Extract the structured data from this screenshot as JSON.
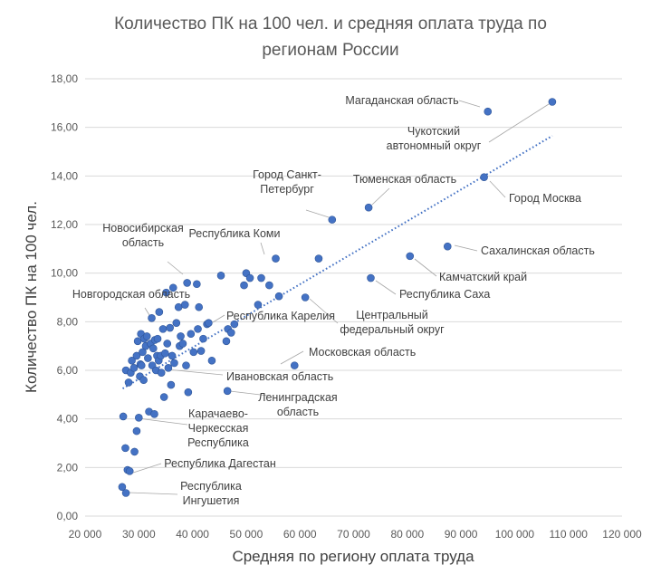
{
  "chart_data": {
    "type": "scatter",
    "title_lines": [
      "Количество ПК на 100 чел. и средняя оплата труда по",
      "регионам России"
    ],
    "xlabel": "Средняя по региону оплата труда",
    "ylabel": "Количество ПК на 100 чел.",
    "xlim": [
      20000,
      120000
    ],
    "ylim": [
      0,
      18
    ],
    "x_ticks": [
      20000,
      30000,
      40000,
      50000,
      60000,
      70000,
      80000,
      90000,
      100000,
      110000,
      120000
    ],
    "x_tick_labels": [
      "20 000",
      "30 000",
      "40 000",
      "50 000",
      "60 000",
      "70 000",
      "80 000",
      "90 000",
      "100 000",
      "110 000",
      "120 000"
    ],
    "y_ticks": [
      0,
      2,
      4,
      6,
      8,
      10,
      12,
      14,
      16,
      18
    ],
    "y_tick_labels": [
      "0,00",
      "2,00",
      "4,00",
      "6,00",
      "8,00",
      "10,00",
      "12,00",
      "14,00",
      "16,00",
      "18,00"
    ],
    "grid": "horizontal",
    "trendline": {
      "type": "linear",
      "x": [
        27000,
        107000
      ],
      "y": [
        5.25,
        15.65
      ]
    },
    "labeled_points": [
      {
        "lines": [
          "Магаданская область"
        ],
        "x": 95000,
        "y": 16.65
      },
      {
        "lines": [
          "Чукотский",
          "автономный округ"
        ],
        "x": 107000,
        "y": 17.05
      },
      {
        "lines": [
          "Город Санкт-",
          "Петербург"
        ],
        "x": 66000,
        "y": 12.2
      },
      {
        "lines": [
          "Тюменская область"
        ],
        "x": 72800,
        "y": 12.7
      },
      {
        "lines": [
          "Город Москва"
        ],
        "x": 94300,
        "y": 13.95
      },
      {
        "lines": [
          "Сахалинская область"
        ],
        "x": 87500,
        "y": 11.1
      },
      {
        "lines": [
          "Новосибирская",
          "область"
        ],
        "x": 39000,
        "y": 9.6
      },
      {
        "lines": [
          "Республика Коми"
        ],
        "x": 55500,
        "y": 10.6
      },
      {
        "lines": [
          "Новгородская область"
        ],
        "x": 32400,
        "y": 8.15
      },
      {
        "lines": [
          "Республика Карелия"
        ],
        "x": 43000,
        "y": 7.95
      },
      {
        "lines": [
          "Центральный",
          "федеральный округ"
        ],
        "x": 61000,
        "y": 9.0
      },
      {
        "lines": [
          "Камчатский край"
        ],
        "x": 80500,
        "y": 10.7
      },
      {
        "lines": [
          "Республика Саха"
        ],
        "x": 73200,
        "y": 9.8
      },
      {
        "lines": [
          "Московская область"
        ],
        "x": 59000,
        "y": 6.2
      },
      {
        "lines": [
          "Ивановская область"
        ],
        "x": 34200,
        "y": 5.9
      },
      {
        "lines": [
          "Ленинградская",
          "область"
        ],
        "x": 46500,
        "y": 5.15
      },
      {
        "lines": [
          "Карачаево-",
          "Черкесская",
          "Республика"
        ],
        "x": 29600,
        "y": 3.5
      },
      {
        "lines": [
          "Республика Дагестан"
        ],
        "x": 28300,
        "y": 1.85
      },
      {
        "lines": [
          "Республика",
          "Ингушетия"
        ],
        "x": 27600,
        "y": 0.95
      }
    ],
    "other_points": [
      [
        26900,
        1.2
      ],
      [
        27100,
        4.1
      ],
      [
        27500,
        2.8
      ],
      [
        27600,
        6.0
      ],
      [
        27900,
        1.9
      ],
      [
        28100,
        5.5
      ],
      [
        28500,
        5.9
      ],
      [
        28700,
        6.4
      ],
      [
        29100,
        6.1
      ],
      [
        29200,
        2.65
      ],
      [
        29600,
        6.6
      ],
      [
        29800,
        7.2
      ],
      [
        30000,
        4.05
      ],
      [
        30200,
        5.75
      ],
      [
        30300,
        6.25
      ],
      [
        30400,
        7.5
      ],
      [
        30500,
        6.2
      ],
      [
        30700,
        6.75
      ],
      [
        30900,
        5.6
      ],
      [
        31000,
        7.3
      ],
      [
        31300,
        7.0
      ],
      [
        31500,
        7.4
      ],
      [
        31700,
        6.5
      ],
      [
        31900,
        4.3
      ],
      [
        32200,
        7.1
      ],
      [
        32500,
        6.2
      ],
      [
        32700,
        6.9
      ],
      [
        32900,
        4.2
      ],
      [
        33000,
        7.25
      ],
      [
        33200,
        6.0
      ],
      [
        33400,
        6.6
      ],
      [
        33500,
        7.3
      ],
      [
        33700,
        6.4
      ],
      [
        33800,
        8.4
      ],
      [
        34100,
        6.6
      ],
      [
        34500,
        7.7
      ],
      [
        34700,
        4.9
      ],
      [
        34900,
        6.7
      ],
      [
        35100,
        9.2
      ],
      [
        35300,
        7.1
      ],
      [
        35500,
        6.1
      ],
      [
        35800,
        7.75
      ],
      [
        36000,
        5.4
      ],
      [
        36200,
        6.6
      ],
      [
        36400,
        9.4
      ],
      [
        36600,
        6.3
      ],
      [
        37000,
        7.95
      ],
      [
        37400,
        8.6
      ],
      [
        37600,
        7.0
      ],
      [
        37800,
        7.4
      ],
      [
        38200,
        7.1
      ],
      [
        38600,
        8.7
      ],
      [
        38800,
        6.2
      ],
      [
        39200,
        5.1
      ],
      [
        39700,
        7.5
      ],
      [
        40200,
        6.75
      ],
      [
        40800,
        9.55
      ],
      [
        41000,
        7.7
      ],
      [
        41200,
        8.6
      ],
      [
        41600,
        6.8
      ],
      [
        42000,
        7.3
      ],
      [
        42700,
        7.9
      ],
      [
        43600,
        6.4
      ],
      [
        45300,
        9.9
      ],
      [
        46300,
        7.2
      ],
      [
        46600,
        7.7
      ],
      [
        47200,
        7.55
      ],
      [
        47800,
        7.9
      ],
      [
        49600,
        9.5
      ],
      [
        50000,
        10.0
      ],
      [
        50700,
        9.8
      ],
      [
        52200,
        8.7
      ],
      [
        52800,
        9.8
      ],
      [
        54300,
        9.5
      ],
      [
        56100,
        9.05
      ],
      [
        63500,
        10.6
      ]
    ]
  }
}
